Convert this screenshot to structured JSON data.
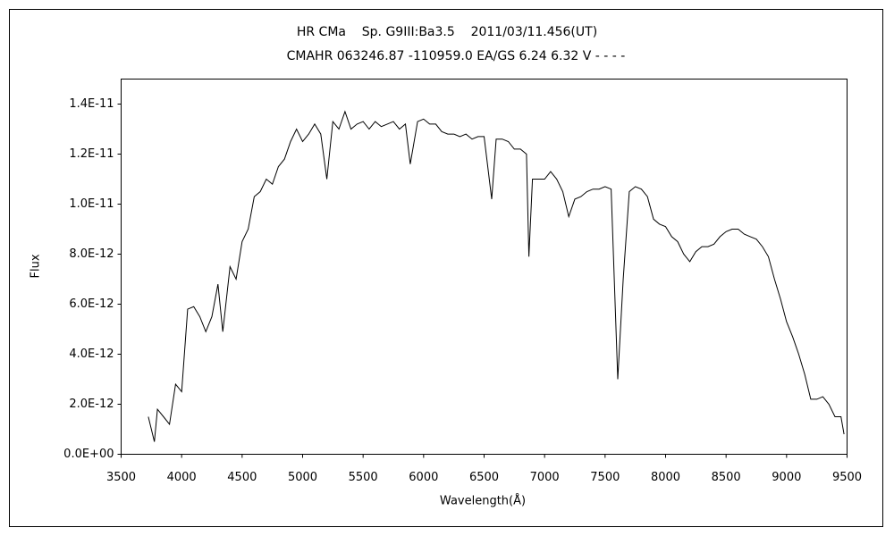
{
  "chart_data": {
    "type": "line",
    "title": "HR CMa    Sp. G9III:Ba3.5    2011/03/11.456(UT)",
    "subtitle": "CMAHR 063246.87 -110959.0 EA/GS 6.24 6.32 V - - - -",
    "xlabel": "Wavelength(Å)",
    "ylabel": "Flux",
    "xlim": [
      3500,
      9500
    ],
    "xticks": [
      3500,
      4000,
      4500,
      5000,
      5500,
      6000,
      6500,
      7000,
      7500,
      8000,
      8500,
      9000,
      9500
    ],
    "ylim": [
      0,
      1.5e-11
    ],
    "yticks": [
      {
        "value": 0,
        "label": "0.0E+00"
      },
      {
        "value": 2e-12,
        "label": "2.0E-12"
      },
      {
        "value": 4e-12,
        "label": "4.0E-12"
      },
      {
        "value": 6e-12,
        "label": "6.0E-12"
      },
      {
        "value": 8e-12,
        "label": "8.0E-12"
      },
      {
        "value": 1e-11,
        "label": "1.0E-11"
      },
      {
        "value": 1.2e-11,
        "label": "1.2E-11"
      },
      {
        "value": 1.4e-11,
        "label": "1.4E-11"
      }
    ],
    "color": "#000000",
    "x": [
      3725,
      3750,
      3775,
      3800,
      3850,
      3900,
      3950,
      4000,
      4050,
      4100,
      4150,
      4200,
      4250,
      4300,
      4340,
      4400,
      4450,
      4500,
      4550,
      4600,
      4650,
      4700,
      4750,
      4800,
      4850,
      4900,
      4950,
      5000,
      5050,
      5100,
      5150,
      5200,
      5250,
      5300,
      5350,
      5400,
      5450,
      5500,
      5550,
      5600,
      5650,
      5700,
      5750,
      5800,
      5850,
      5890,
      5950,
      6000,
      6050,
      6100,
      6150,
      6200,
      6250,
      6300,
      6350,
      6400,
      6450,
      6500,
      6563,
      6600,
      6650,
      6700,
      6750,
      6800,
      6850,
      6870,
      6900,
      6950,
      7000,
      7050,
      7100,
      7150,
      7200,
      7250,
      7300,
      7350,
      7400,
      7450,
      7500,
      7550,
      7605,
      7650,
      7700,
      7750,
      7800,
      7850,
      7900,
      7950,
      8000,
      8050,
      8100,
      8150,
      8200,
      8250,
      8300,
      8350,
      8400,
      8450,
      8500,
      8550,
      8600,
      8650,
      8700,
      8750,
      8800,
      8850,
      8900,
      8950,
      9000,
      9050,
      9100,
      9150,
      9200,
      9250,
      9300,
      9350,
      9400,
      9450,
      9475
    ],
    "values": [
      1.5e-12,
      1e-12,
      5e-13,
      1.8e-12,
      1.5e-12,
      1.2e-12,
      2.8e-12,
      2.5e-12,
      5.8e-12,
      5.9e-12,
      5.5e-12,
      4.9e-12,
      5.5e-12,
      6.8e-12,
      4.9e-12,
      7.5e-12,
      7e-12,
      8.5e-12,
      9e-12,
      1.03e-11,
      1.05e-11,
      1.1e-11,
      1.08e-11,
      1.15e-11,
      1.18e-11,
      1.25e-11,
      1.3e-11,
      1.25e-11,
      1.28e-11,
      1.32e-11,
      1.28e-11,
      1.1e-11,
      1.33e-11,
      1.3e-11,
      1.37e-11,
      1.3e-11,
      1.32e-11,
      1.33e-11,
      1.3e-11,
      1.33e-11,
      1.31e-11,
      1.32e-11,
      1.33e-11,
      1.3e-11,
      1.32e-11,
      1.16e-11,
      1.33e-11,
      1.34e-11,
      1.32e-11,
      1.32e-11,
      1.29e-11,
      1.28e-11,
      1.28e-11,
      1.27e-11,
      1.28e-11,
      1.26e-11,
      1.27e-11,
      1.27e-11,
      1.02e-11,
      1.26e-11,
      1.26e-11,
      1.25e-11,
      1.22e-11,
      1.22e-11,
      1.2e-11,
      7.9e-12,
      1.1e-11,
      1.1e-11,
      1.1e-11,
      1.13e-11,
      1.1e-11,
      1.05e-11,
      9.5e-12,
      1.02e-11,
      1.03e-11,
      1.05e-11,
      1.06e-11,
      1.06e-11,
      1.07e-11,
      1.06e-11,
      3e-12,
      7e-12,
      1.05e-11,
      1.07e-11,
      1.06e-11,
      1.03e-11,
      9.4e-12,
      9.2e-12,
      9.1e-12,
      8.7e-12,
      8.5e-12,
      8e-12,
      7.7e-12,
      8.1e-12,
      8.3e-12,
      8.3e-12,
      8.4e-12,
      8.7e-12,
      8.9e-12,
      9e-12,
      9e-12,
      8.8e-12,
      8.7e-12,
      8.6e-12,
      8.3e-12,
      7.9e-12,
      7e-12,
      6.2e-12,
      5.3e-12,
      4.7e-12,
      4e-12,
      3.2e-12,
      2.2e-12,
      2.2e-12,
      2.3e-12,
      2e-12,
      1.5e-12,
      1.5e-12,
      8e-13
    ]
  }
}
